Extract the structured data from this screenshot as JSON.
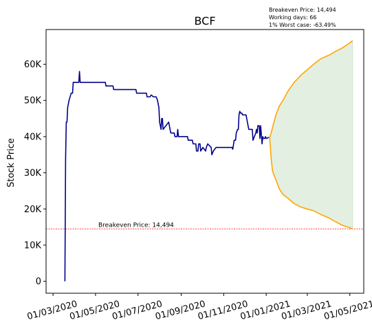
{
  "chart_data": {
    "type": "line",
    "title": "BCF",
    "xlabel": "",
    "ylabel": "Stock Price",
    "ylim": [
      -3300,
      69600
    ],
    "xlim": [
      "2020-02-20",
      "2021-05-21"
    ],
    "yticks": [
      0,
      10000,
      20000,
      30000,
      40000,
      50000,
      60000
    ],
    "ytick_labels": [
      "0",
      "10K",
      "20K",
      "30K",
      "40K",
      "50K",
      "60K"
    ],
    "xticks": [
      "2020-03-01",
      "2020-05-01",
      "2020-07-01",
      "2020-09-01",
      "2020-11-01",
      "2021-01-01",
      "2021-03-01",
      "2021-05-01"
    ],
    "xtick_labels": [
      "01/03/2020",
      "01/05/2020",
      "01/07/2020",
      "01/09/2020",
      "01/11/2020",
      "01/01/2021",
      "01/03/2021",
      "01/05/2021"
    ],
    "info_lines": [
      "Breakeven Price: 14,494",
      "Working days: 66",
      "1% Worst case: -63.49%"
    ],
    "breakeven": {
      "value": 14494,
      "label": "Breakeven Price: 14,494",
      "color": "#ff0000"
    },
    "colors": {
      "history": "#00008b",
      "bound": "#ffa500",
      "fill": "#e3efe1"
    },
    "series": [
      {
        "name": "history",
        "points": [
          [
            "2020-03-18",
            0
          ],
          [
            "2020-03-19",
            34000
          ],
          [
            "2020-03-20",
            44000
          ],
          [
            "2020-03-21",
            44000
          ],
          [
            "2020-03-22",
            48000
          ],
          [
            "2020-03-24",
            50000
          ],
          [
            "2020-03-27",
            52000
          ],
          [
            "2020-03-29",
            52000
          ],
          [
            "2020-03-30",
            55000
          ],
          [
            "2020-04-06",
            55000
          ],
          [
            "2020-04-07",
            55000
          ],
          [
            "2020-04-08",
            58000
          ],
          [
            "2020-04-09",
            55000
          ],
          [
            "2020-05-15",
            55000
          ],
          [
            "2020-05-16",
            54000
          ],
          [
            "2020-05-26",
            54000
          ],
          [
            "2020-05-27",
            53000
          ],
          [
            "2020-06-28",
            53000
          ],
          [
            "2020-06-29",
            52000
          ],
          [
            "2020-07-13",
            52000
          ],
          [
            "2020-07-14",
            51000
          ],
          [
            "2020-07-18",
            51000
          ],
          [
            "2020-07-20",
            51500
          ],
          [
            "2020-07-23",
            51000
          ],
          [
            "2020-07-27",
            51000
          ],
          [
            "2020-07-29",
            50000
          ],
          [
            "2020-07-31",
            48000
          ],
          [
            "2020-08-01",
            44000
          ],
          [
            "2020-08-02",
            43000
          ],
          [
            "2020-08-03",
            42000
          ],
          [
            "2020-08-04",
            45000
          ],
          [
            "2020-08-05",
            45000
          ],
          [
            "2020-08-06",
            42000
          ],
          [
            "2020-08-10",
            43000
          ],
          [
            "2020-08-14",
            44000
          ],
          [
            "2020-08-16",
            42000
          ],
          [
            "2020-08-17",
            41000
          ],
          [
            "2020-08-22",
            41000
          ],
          [
            "2020-08-23",
            40000
          ],
          [
            "2020-08-26",
            40000
          ],
          [
            "2020-08-27",
            42000
          ],
          [
            "2020-08-28",
            40000
          ],
          [
            "2020-09-10",
            40000
          ],
          [
            "2020-09-11",
            39000
          ],
          [
            "2020-09-17",
            39000
          ],
          [
            "2020-09-18",
            38000
          ],
          [
            "2020-09-22",
            38000
          ],
          [
            "2020-09-23",
            36000
          ],
          [
            "2020-09-25",
            36000
          ],
          [
            "2020-09-26",
            38000
          ],
          [
            "2020-09-28",
            38000
          ],
          [
            "2020-09-29",
            36000
          ],
          [
            "2020-10-02",
            37000
          ],
          [
            "2020-10-06",
            36000
          ],
          [
            "2020-10-07",
            37000
          ],
          [
            "2020-10-09",
            38000
          ],
          [
            "2020-10-14",
            37000
          ],
          [
            "2020-10-15",
            35000
          ],
          [
            "2020-10-17",
            36000
          ],
          [
            "2020-10-21",
            37000
          ],
          [
            "2020-11-12",
            37000
          ],
          [
            "2020-11-13",
            37000
          ],
          [
            "2020-11-14",
            36500
          ],
          [
            "2020-11-16",
            39000
          ],
          [
            "2020-11-18",
            39000
          ],
          [
            "2020-11-19",
            41000
          ],
          [
            "2020-11-21",
            42000
          ],
          [
            "2020-11-22",
            42000
          ],
          [
            "2020-11-23",
            46000
          ],
          [
            "2020-11-24",
            47000
          ],
          [
            "2020-11-25",
            46500
          ],
          [
            "2020-11-27",
            46500
          ],
          [
            "2020-11-28",
            46000
          ],
          [
            "2020-12-03",
            46000
          ],
          [
            "2020-12-04",
            45000
          ],
          [
            "2020-12-06",
            43000
          ],
          [
            "2020-12-07",
            42000
          ],
          [
            "2020-12-12",
            42000
          ],
          [
            "2020-12-13",
            39000
          ],
          [
            "2020-12-15",
            40000
          ],
          [
            "2020-12-17",
            41000
          ],
          [
            "2020-12-18",
            42000
          ],
          [
            "2020-12-19",
            41000
          ],
          [
            "2020-12-20",
            43000
          ],
          [
            "2020-12-22",
            43000
          ],
          [
            "2020-12-23",
            39500
          ],
          [
            "2020-12-24",
            43000
          ],
          [
            "2020-12-26",
            38000
          ],
          [
            "2020-12-27",
            40000
          ],
          [
            "2020-12-28",
            39500
          ],
          [
            "2020-12-30",
            39500
          ],
          [
            "2020-12-31",
            40000
          ],
          [
            "2021-01-01",
            39500
          ],
          [
            "2021-01-05",
            39800
          ]
        ]
      },
      {
        "name": "upper-bound",
        "points": [
          [
            "2021-01-06",
            39800
          ],
          [
            "2021-01-08",
            41000
          ],
          [
            "2021-01-10",
            42500
          ],
          [
            "2021-01-15",
            46000
          ],
          [
            "2021-01-20",
            48500
          ],
          [
            "2021-01-25",
            50000
          ],
          [
            "2021-02-01",
            52500
          ],
          [
            "2021-02-10",
            55000
          ],
          [
            "2021-02-20",
            57000
          ],
          [
            "2021-03-01",
            58500
          ],
          [
            "2021-03-10",
            60000
          ],
          [
            "2021-03-20",
            61500
          ],
          [
            "2021-04-01",
            62500
          ],
          [
            "2021-04-10",
            63500
          ],
          [
            "2021-04-20",
            64500
          ],
          [
            "2021-04-28",
            65500
          ],
          [
            "2021-05-05",
            66500
          ]
        ]
      },
      {
        "name": "lower-bound",
        "points": [
          [
            "2021-01-06",
            39800
          ],
          [
            "2021-01-08",
            34000
          ],
          [
            "2021-01-10",
            30500
          ],
          [
            "2021-01-15",
            28000
          ],
          [
            "2021-01-20",
            25500
          ],
          [
            "2021-01-25",
            24000
          ],
          [
            "2021-02-01",
            23000
          ],
          [
            "2021-02-10",
            21500
          ],
          [
            "2021-02-20",
            20500
          ],
          [
            "2021-03-01",
            20000
          ],
          [
            "2021-03-10",
            19500
          ],
          [
            "2021-03-20",
            18500
          ],
          [
            "2021-04-01",
            17500
          ],
          [
            "2021-04-10",
            16500
          ],
          [
            "2021-04-20",
            15500
          ],
          [
            "2021-04-28",
            15000
          ],
          [
            "2021-05-05",
            14500
          ]
        ]
      }
    ]
  }
}
